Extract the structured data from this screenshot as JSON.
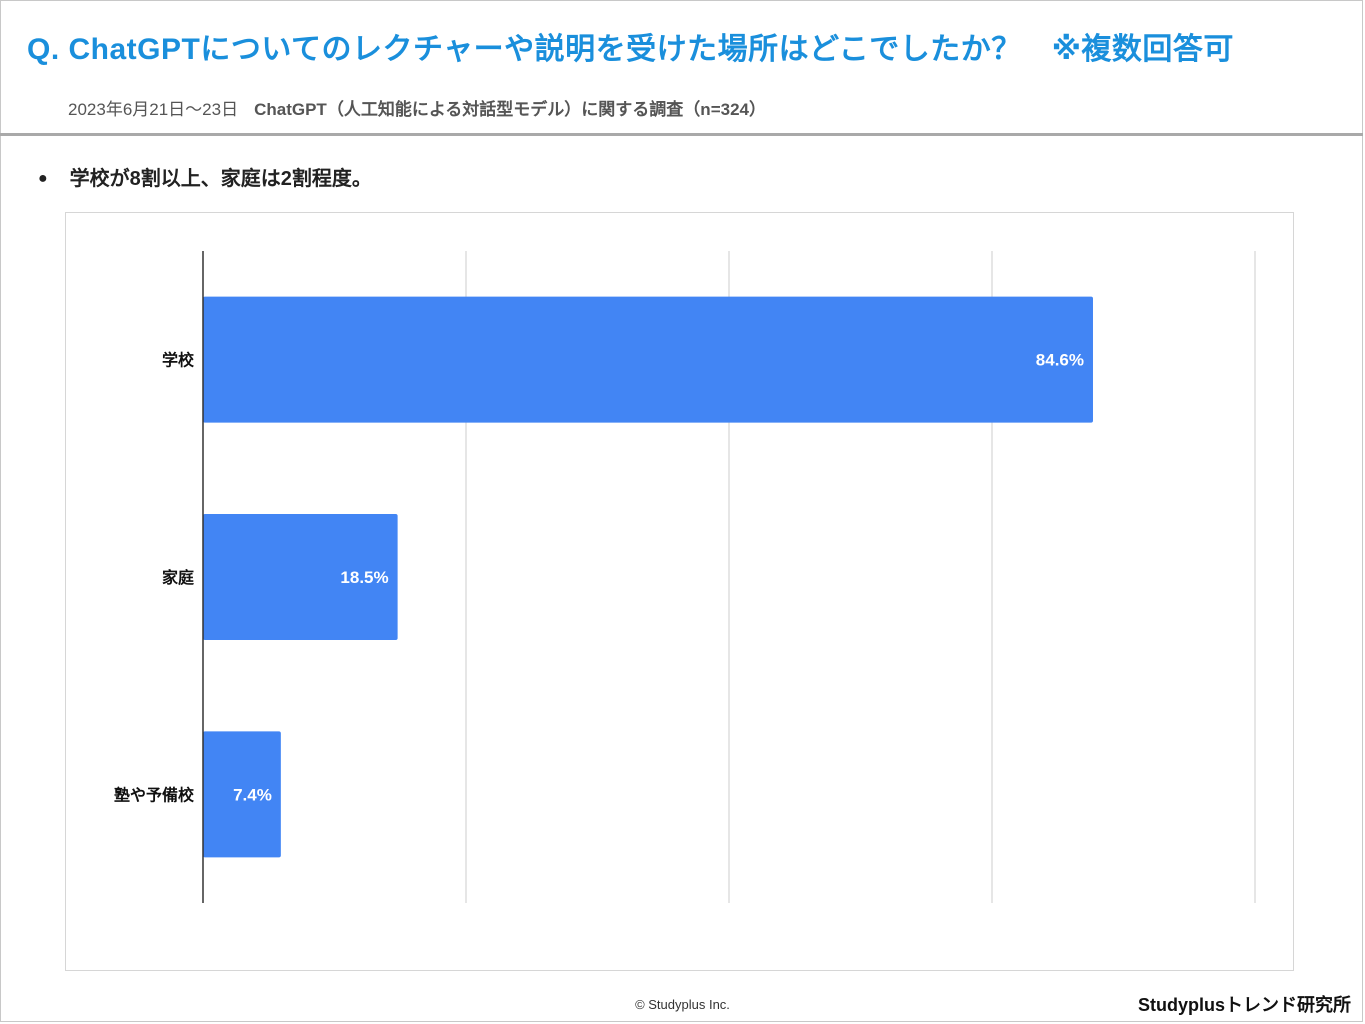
{
  "header": {
    "title": "Q. ChatGPTについてのレクチャーや説明を受けた場所はどこでしたか？",
    "title_note": "※複数回答可",
    "survey_date": "2023年6月21日～23日",
    "survey_name": "ChatGPT（人工知能による対話型モデル）に関する調査（n=324）"
  },
  "summary": {
    "bullet": "●",
    "text": "学校が8割以上、家庭は2割程度。"
  },
  "colors": {
    "title": "#1a8fdc",
    "bar": "#4285f4",
    "bar_label": "#ffffff",
    "grid": "#cccccc",
    "axis": "#333333"
  },
  "chart_data": {
    "type": "bar",
    "orientation": "horizontal",
    "categories": [
      "学校",
      "家庭",
      "塾や予備校"
    ],
    "values": [
      84.6,
      18.5,
      7.4
    ],
    "value_labels": [
      "84.6%",
      "18.5%",
      "7.4%"
    ],
    "xlim": [
      0,
      100
    ],
    "grid": true,
    "gridlines": [
      0,
      25,
      50,
      75,
      100
    ],
    "legend": "none"
  },
  "footer": {
    "copyright": "© Studyplus Inc.",
    "brand": "Studyplusトレンド研究所"
  }
}
